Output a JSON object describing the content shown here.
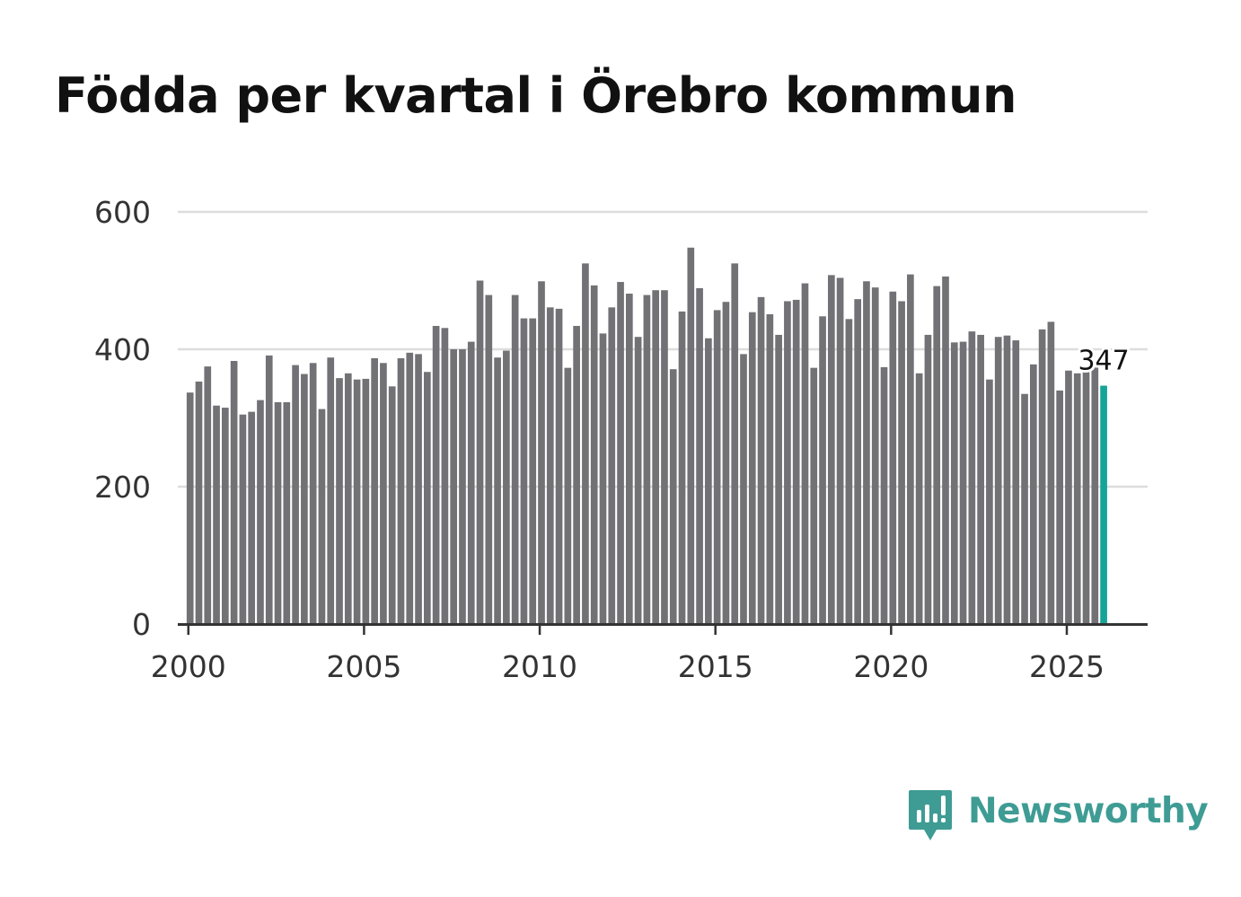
{
  "chart_data": {
    "type": "bar",
    "title": "Födda per kvartal i Örebro kommun",
    "xlabel": "",
    "ylabel": "",
    "ylim": [
      0,
      600
    ],
    "xlim": [
      1999.7,
      2027.3
    ],
    "yticks": [
      0,
      200,
      400,
      600
    ],
    "xticks": [
      2000,
      2005,
      2010,
      2015,
      2020,
      2025
    ],
    "grid": true,
    "start_year": 2000,
    "start_quarter": 1,
    "values": [
      337,
      353,
      375,
      318,
      315,
      383,
      305,
      309,
      326,
      391,
      323,
      323,
      377,
      364,
      380,
      313,
      388,
      358,
      365,
      356,
      357,
      387,
      380,
      346,
      387,
      395,
      393,
      367,
      434,
      431,
      400,
      400,
      411,
      500,
      479,
      388,
      398,
      479,
      445,
      445,
      499,
      461,
      459,
      373,
      434,
      525,
      493,
      423,
      461,
      498,
      481,
      418,
      479,
      486,
      486,
      371,
      455,
      548,
      489,
      416,
      457,
      469,
      525,
      393,
      454,
      476,
      451,
      421,
      470,
      472,
      496,
      373,
      448,
      508,
      504,
      444,
      473,
      499,
      490,
      374,
      484,
      470,
      509,
      365,
      421,
      492,
      506,
      410,
      411,
      426,
      421,
      356,
      418,
      420,
      413,
      335,
      378,
      429,
      440,
      340,
      369,
      365,
      368,
      375,
      347
    ],
    "highlight_index": 104,
    "highlight_label": "347",
    "bar_color": "#727276",
    "highlight_color": "#17a398",
    "grid_color": "#dddddd",
    "axis_color": "#333333"
  },
  "brand": {
    "name": "Newsworthy",
    "color": "#3e9c94",
    "icon": "newsworthy-logo-icon"
  }
}
